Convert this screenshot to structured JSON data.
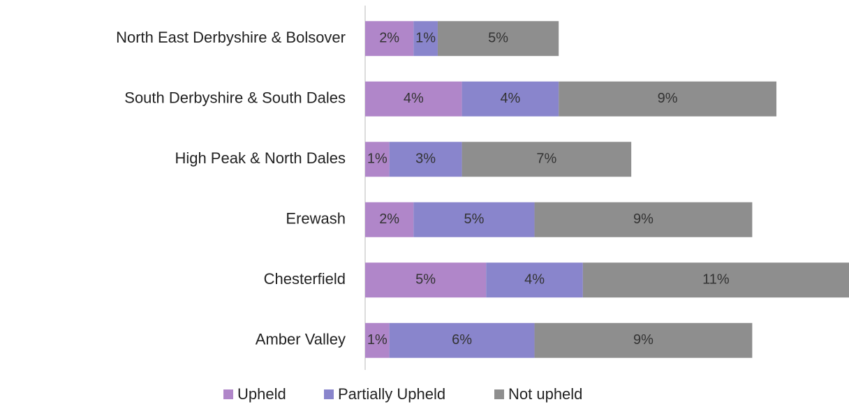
{
  "chart_data": {
    "type": "stacked-bar-horizontal",
    "categories": [
      "North East Derbyshire & Bolsover",
      "South Derbyshire & South Dales",
      "High Peak & North Dales",
      "Erewash",
      "Chesterfield",
      "Amber Valley"
    ],
    "series": [
      {
        "name": "Upheld",
        "color": "#b086c9",
        "values": [
          2,
          4,
          1,
          2,
          5,
          1
        ],
        "value_labels": [
          "2%",
          "4%",
          "1%",
          "2%",
          "5%",
          "1%"
        ]
      },
      {
        "name": "Partially Upheld",
        "color": "#8985cc",
        "values": [
          1,
          4,
          3,
          5,
          4,
          6
        ],
        "value_labels": [
          "1%",
          "4%",
          "3%",
          "5%",
          "4%",
          "6%"
        ]
      },
      {
        "name": "Not upheld",
        "color": "#8e8e8e",
        "values": [
          5,
          9,
          7,
          9,
          11,
          9
        ],
        "value_labels": [
          "5%",
          "9%",
          "7%",
          "9%",
          "11%",
          "9%"
        ]
      }
    ],
    "xlim": [
      0,
      20
    ],
    "legend": "bottom"
  }
}
